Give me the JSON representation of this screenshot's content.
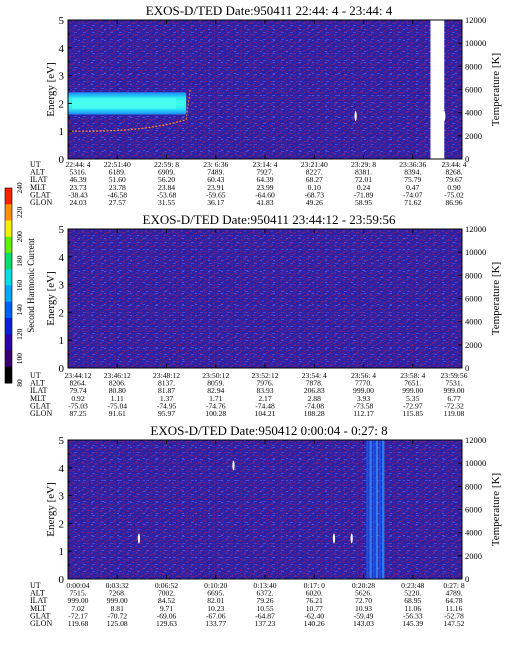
{
  "chart_data": [
    {
      "type": "heatmap",
      "title": "EXOS-D/TED   Date:950411  22:44: 4 - 23:44: 4",
      "ylabel": "Energy [eV]",
      "y2label": "Temperature [K]",
      "ylim": [
        0,
        5
      ],
      "y2lim": [
        0,
        12000
      ],
      "yticks": [
        "0",
        "1",
        "2",
        "3",
        "4",
        "5"
      ],
      "y2ticks": [
        "0",
        "2000",
        "4000",
        "6000",
        "8000",
        "10000",
        "12000"
      ],
      "time_axis_label": [
        "UT",
        "ALT",
        "ILAT",
        "MLT",
        "GLAT",
        "GLON"
      ],
      "x_ticks": [
        [
          "22:44: 4",
          "22:51:40",
          "22:59: 8",
          "23: 6:36",
          "23:14: 4",
          "23:21:40",
          "23:29: 8",
          "23:36:36",
          "23:44: 4"
        ],
        [
          "5316.",
          "6189.",
          "6909.",
          "7489.",
          "7927.",
          "8227.",
          "8381.",
          "8394.",
          "8268."
        ],
        [
          "46.39",
          "51.60",
          "56.20",
          "60.43",
          "64.39",
          "68.27",
          "72.01",
          "75.79",
          "79.67"
        ],
        [
          "23.73",
          "23.78",
          "23.84",
          "23.91",
          "23.99",
          "0.10",
          "0.24",
          "0.47",
          "0.90"
        ],
        [
          "-38.43",
          "-46.58",
          "-53.68",
          "-59.65",
          "-64.60",
          "-68.73",
          "-71.89",
          "-74.07",
          "-75.02"
        ],
        [
          "24.03",
          "27.57",
          "31.55",
          "36.17",
          "41.83",
          "49.26",
          "58.95",
          "71.62",
          "86.96"
        ]
      ],
      "features": [
        {
          "kind": "band",
          "label": "cold ion band",
          "x_start_frac": 0.0,
          "x_end_frac": 0.3,
          "energy_low": 1.6,
          "energy_high": 2.4,
          "color": "#33ffee"
        },
        {
          "kind": "temperature_trace",
          "x_start_frac": 0.0,
          "x_end_frac": 0.3,
          "temperature_start": 2400,
          "temperature_end": 3400,
          "color": "#ff8c1a"
        }
      ],
      "data_gap_x_frac": [
        0.92,
        0.955
      ]
    },
    {
      "type": "heatmap",
      "title": "EXOS-D/TED   Date:950411  23:44:12 - 23:59:56",
      "ylabel": "Energy [eV]",
      "y2label": "Temperature [K]",
      "ylim": [
        0,
        5
      ],
      "y2lim": [
        0,
        12000
      ],
      "yticks": [
        "0",
        "1",
        "2",
        "3",
        "4",
        "5"
      ],
      "y2ticks": [
        "0",
        "2000",
        "4000",
        "6000",
        "8000",
        "10000",
        "12000"
      ],
      "time_axis_label": [
        "UT",
        "ALT",
        "ILAT",
        "MLT",
        "GLAT",
        "GLON"
      ],
      "x_ticks": [
        [
          "23:44:12",
          "23:46:12",
          "23:48:12",
          "23:50:12",
          "23:52:12",
          "23:54: 4",
          "23:56: 4",
          "23:58: 4",
          "23:59:56"
        ],
        [
          "8264.",
          "8206.",
          "8137.",
          "8059.",
          "7976.",
          "7878.",
          "7770.",
          "7651.",
          "7531."
        ],
        [
          "79.74",
          "80.80",
          "81.87",
          "82.94",
          "83.93",
          "206.83",
          "999.00",
          "999.00",
          "999.00"
        ],
        [
          "0.92",
          "1.11",
          "1.37",
          "1.71",
          "2.17",
          "2.88",
          "3.93",
          "5.35",
          "6.77"
        ],
        [
          "-75.03",
          "-75.04",
          "-74.95",
          "-74.76",
          "-74.48",
          "-74.08",
          "-73.58",
          "-72.97",
          "-72.32"
        ],
        [
          "87.25",
          "91.61",
          "95.97",
          "100.28",
          "104.21",
          "108.28",
          "112.17",
          "115.85",
          "119.08"
        ]
      ],
      "features": []
    },
    {
      "type": "heatmap",
      "title": "EXOS-D/TED   Date:950412   0:00:04 - 0:27: 8",
      "ylabel": "Energy [eV]",
      "y2label": "Temperature [K]",
      "ylim": [
        0,
        5
      ],
      "y2lim": [
        0,
        12000
      ],
      "yticks": [
        "0",
        "1",
        "2",
        "3",
        "4",
        "5"
      ],
      "y2ticks": [
        "0",
        "2000",
        "4000",
        "6000",
        "8000",
        "10000",
        "12000"
      ],
      "time_axis_label": [
        "UT",
        "ALT",
        "ILAT",
        "MLT",
        "GLAT",
        "GLON"
      ],
      "x_ticks": [
        [
          "0:00:04",
          "0:03:32",
          "0:06:52",
          "0:10:20",
          "0:13:40",
          "0:17: 0",
          "0:20:28",
          "0:23:48",
          "0:27: 8"
        ],
        [
          "7515.",
          "7268.",
          "7002.",
          "6695.",
          "6372.",
          "6020.",
          "5626.",
          "5220.",
          "4789."
        ],
        [
          "999.00",
          "999.00",
          "84.52",
          "82.01",
          "79.26",
          "76.21",
          "72.70",
          "68.95",
          "64.78"
        ],
        [
          "7.02",
          "8.81",
          "9.71",
          "10.23",
          "10.55",
          "10.77",
          "10.93",
          "11.06",
          "11.16"
        ],
        [
          "-72.17",
          "-70.72",
          "-69.06",
          "-67.06",
          "-64.87",
          "-62.40",
          "-59.49",
          "-56.33",
          "-52.78"
        ],
        [
          "119.68",
          "125.08",
          "129.63",
          "133.77",
          "137.23",
          "140.26",
          "143.03",
          "145.39",
          "147.52"
        ]
      ],
      "features": [
        {
          "kind": "band",
          "label": "vertical enhancement",
          "x_start_frac": 0.76,
          "x_end_frac": 0.8,
          "energy_low": 0,
          "energy_high": 5,
          "color": "#1f5fff"
        }
      ]
    }
  ],
  "colorbar": {
    "label": "Second Harmonic Current",
    "ticks": [
      "80",
      "100",
      "120",
      "140",
      "160",
      "180",
      "200",
      "220",
      "240"
    ],
    "range": [
      80,
      240
    ],
    "colors": [
      "#000000",
      "#3a0070",
      "#2a00b0",
      "#0a20e0",
      "#0060ff",
      "#00a8ff",
      "#00e0e0",
      "#00e070",
      "#60f000",
      "#f0f000",
      "#ff9000",
      "#ff2000"
    ]
  },
  "colors": {
    "background_field": "#2a22a8",
    "noise_red": "#7a1c7a",
    "noise_light": "#4a48d0",
    "data_gap": "#ffffff"
  }
}
